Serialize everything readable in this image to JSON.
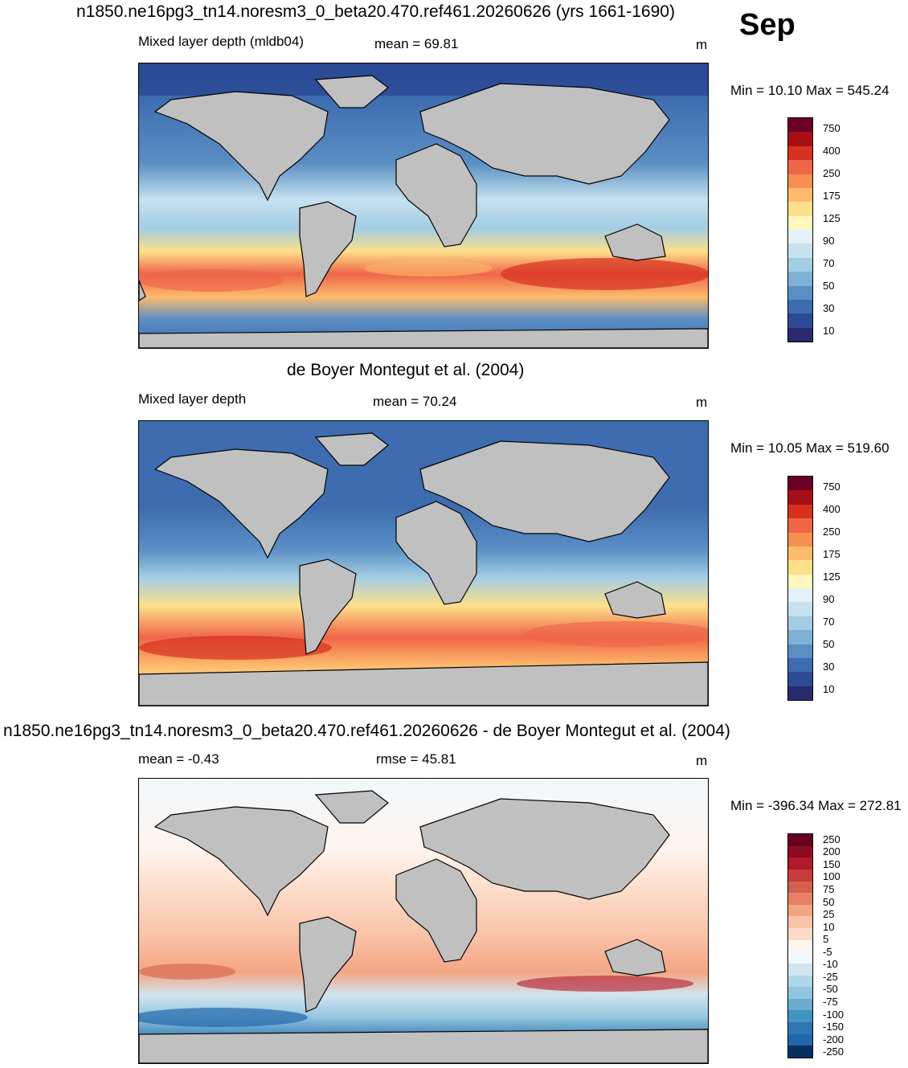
{
  "month": "Sep",
  "units": "m",
  "panels": [
    {
      "title": "n1850.ne16pg3_tn14.noresm3_0_beta20.470.ref461.20260626 (yrs 1661-1690)",
      "left_label": "Mixed layer depth (mldb04)",
      "center_label": "mean =  69.81",
      "range_label": "Min =  10.10 Max = 545.24",
      "colorbar": {
        "labels": [
          "750",
          "400",
          "250",
          "175",
          "125",
          "90",
          "70",
          "50",
          "30",
          "10"
        ],
        "colors": [
          "#6d0026",
          "#a50f15",
          "#d7301f",
          "#ef6548",
          "#f98e52",
          "#fdbb6c",
          "#fee08b",
          "#fff7bc",
          "#e4f1f7",
          "#c5e2ee",
          "#a3cde3",
          "#7fb1d6",
          "#5a8fc4",
          "#3d6cb0",
          "#2c4a95",
          "#2a2a6e"
        ]
      }
    },
    {
      "title": "de Boyer Montegut et al. (2004)",
      "left_label": "Mixed layer depth",
      "center_label": "mean =  70.24",
      "range_label": "Min =  10.05 Max = 519.60",
      "colorbar": {
        "labels": [
          "750",
          "400",
          "250",
          "175",
          "125",
          "90",
          "70",
          "50",
          "30",
          "10"
        ],
        "colors": [
          "#6d0026",
          "#a50f15",
          "#d7301f",
          "#ef6548",
          "#f98e52",
          "#fdbb6c",
          "#fee08b",
          "#fff7bc",
          "#e4f1f7",
          "#c5e2ee",
          "#a3cde3",
          "#7fb1d6",
          "#5a8fc4",
          "#3d6cb0",
          "#2c4a95",
          "#2a2a6e"
        ]
      }
    },
    {
      "title": "n1850.ne16pg3_tn14.noresm3_0_beta20.470.ref461.20260626 - de Boyer Montegut et al. (2004)",
      "left_label": "mean =  -0.43",
      "center_label": "rmse =  45.81",
      "range_label": "Min = -396.34 Max = 272.81",
      "colorbar": {
        "labels": [
          "250",
          "200",
          "150",
          "100",
          "75",
          "50",
          "25",
          "10",
          "5",
          "-5",
          "-10",
          "-25",
          "-50",
          "-75",
          "-100",
          "-150",
          "-200",
          "-250"
        ],
        "colors": [
          "#67001f",
          "#8e0b22",
          "#b2182b",
          "#c43c3c",
          "#d6604d",
          "#e58267",
          "#f4a582",
          "#f9c4a9",
          "#fddbc7",
          "#fff4ee",
          "#f2f8fb",
          "#d1e5f0",
          "#b3d5e8",
          "#92c5de",
          "#6aacd0",
          "#4393c3",
          "#2f76b3",
          "#2166ac",
          "#053061"
        ]
      }
    }
  ]
}
